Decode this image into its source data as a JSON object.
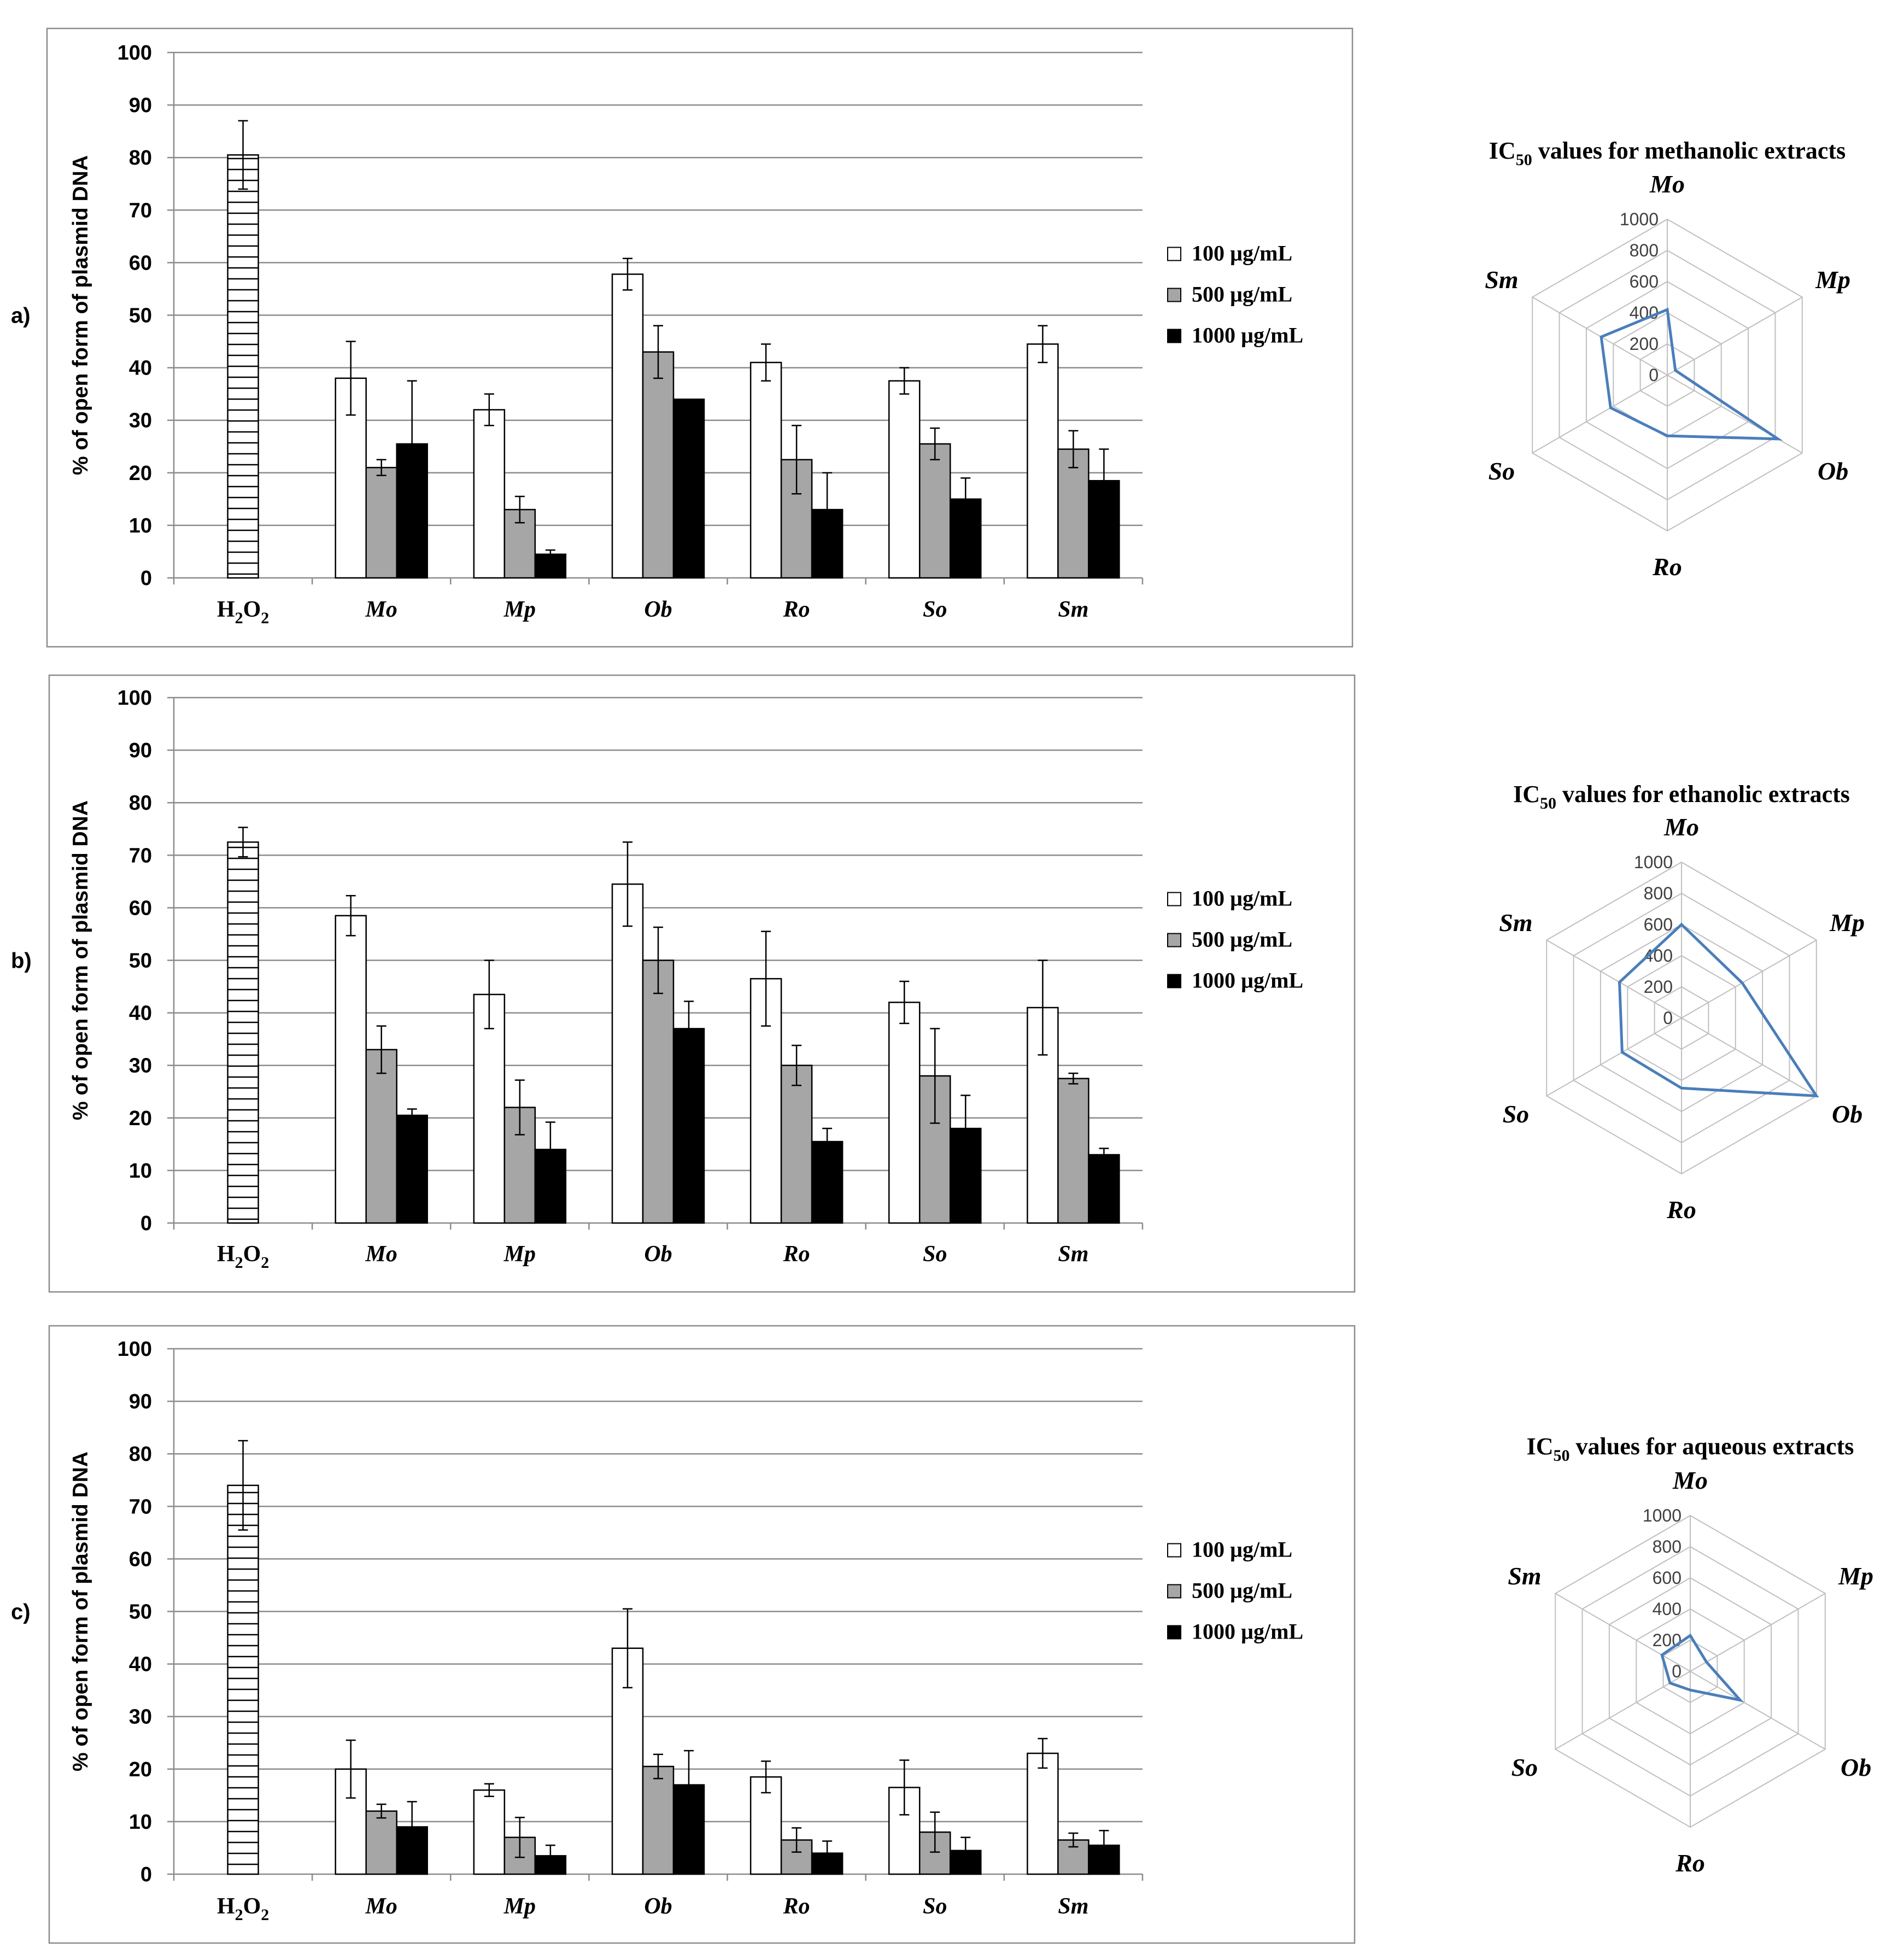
{
  "chart_data": [
    {
      "type": "bar",
      "panel_label": "a)",
      "ylabel": "% of open form of plasmid DNA",
      "ylim": [
        0,
        100
      ],
      "yticks": [
        "0",
        "10",
        "20",
        "30",
        "40",
        "50",
        "60",
        "70",
        "80",
        "90",
        "100"
      ],
      "grid": true,
      "categories": [
        "H2O2",
        "Mo",
        "Mp",
        "Ob",
        "Ro",
        "So",
        "Sm"
      ],
      "control": {
        "name": "H2O2",
        "value": 80.5,
        "error": 6.5
      },
      "series": [
        {
          "name": "100 µg/mL",
          "values": [
            null,
            38,
            32,
            57.8,
            41,
            37.5,
            44.5
          ],
          "errors": [
            null,
            7,
            3,
            3,
            3.5,
            2.5,
            3.5
          ]
        },
        {
          "name": "500 µg/mL",
          "values": [
            null,
            21,
            13,
            43,
            22.5,
            25.5,
            24.5
          ],
          "errors": [
            null,
            1.5,
            2.5,
            5,
            6.5,
            3,
            3.5
          ]
        },
        {
          "name": "1000 µg/mL",
          "values": [
            null,
            25.5,
            4.5,
            34,
            13,
            15,
            18.5
          ],
          "errors": [
            null,
            12,
            0.8,
            0,
            7,
            4,
            6
          ]
        }
      ],
      "legend": [
        "100 µg/mL",
        "500 µg/mL",
        "1000 µg/mL"
      ],
      "legend_position": "right"
    },
    {
      "type": "bar",
      "panel_label": "b)",
      "ylabel": "% of open form of plasmid DNA",
      "ylim": [
        0,
        100
      ],
      "yticks": [
        "0",
        "10",
        "20",
        "30",
        "40",
        "50",
        "60",
        "70",
        "80",
        "90",
        "100"
      ],
      "grid": true,
      "categories": [
        "H2O2",
        "Mo",
        "Mp",
        "Ob",
        "Ro",
        "So",
        "Sm"
      ],
      "control": {
        "name": "H2O2",
        "value": 72.5,
        "error": 2.8
      },
      "series": [
        {
          "name": "100 µg/mL",
          "values": [
            null,
            58.5,
            43.5,
            64.5,
            46.5,
            42,
            41
          ],
          "errors": [
            null,
            3.8,
            6.5,
            8,
            9,
            4,
            9
          ]
        },
        {
          "name": "500 µg/mL",
          "values": [
            null,
            33,
            22,
            50,
            30,
            28,
            27.5
          ],
          "errors": [
            null,
            4.5,
            5.2,
            6.3,
            3.8,
            9,
            1
          ]
        },
        {
          "name": "1000 µg/mL",
          "values": [
            null,
            20.5,
            14,
            37,
            15.5,
            18,
            13
          ],
          "errors": [
            null,
            1.2,
            5.2,
            5.2,
            2.5,
            6.3,
            1.2
          ]
        }
      ],
      "legend": [
        "100 µg/mL",
        "500 µg/mL",
        "1000 µg/mL"
      ],
      "legend_position": "right"
    },
    {
      "type": "bar",
      "panel_label": "c)",
      "ylabel": "% of open form of plasmid DNA",
      "ylim": [
        0,
        100
      ],
      "yticks": [
        "0",
        "10",
        "20",
        "30",
        "40",
        "50",
        "60",
        "70",
        "80",
        "90",
        "100"
      ],
      "grid": true,
      "categories": [
        "H2O2",
        "Mo",
        "Mp",
        "Ob",
        "Ro",
        "So",
        "Sm"
      ],
      "control": {
        "name": "H2O2",
        "value": 74,
        "error": 8.5
      },
      "series": [
        {
          "name": "100 µg/mL",
          "values": [
            null,
            20,
            16,
            43,
            18.5,
            16.5,
            23
          ],
          "errors": [
            null,
            5.5,
            1.2,
            7.5,
            3,
            5.2,
            2.8
          ]
        },
        {
          "name": "500 µg/mL",
          "values": [
            null,
            12,
            7,
            20.5,
            6.5,
            8,
            6.5
          ],
          "errors": [
            null,
            1.3,
            3.8,
            2.3,
            2.3,
            3.8,
            1.3
          ]
        },
        {
          "name": "1000 µg/mL",
          "values": [
            null,
            9,
            3.5,
            17,
            4,
            4.5,
            5.5
          ],
          "errors": [
            null,
            4.8,
            2,
            6.5,
            2.3,
            2.5,
            2.8
          ]
        }
      ],
      "legend": [
        "100 µg/mL",
        "500 µg/mL",
        "1000 µg/mL"
      ],
      "legend_position": "right"
    },
    {
      "type": "radar",
      "title": "IC50 values for methanolic extracts",
      "axes": [
        "Mo",
        "Mp",
        "Ob",
        "So",
        "Ro",
        "Sm"
      ],
      "axis_order_clockwise": [
        "Mo",
        "Mp",
        "Ob",
        "Ro",
        "So",
        "Sm"
      ],
      "rlim": [
        0,
        1000
      ],
      "rticks": [
        "0",
        "200",
        "400",
        "600",
        "800",
        "1000"
      ],
      "values": {
        "Mo": 420,
        "Mp": 60,
        "Ob": 820,
        "Ro": 390,
        "So": 420,
        "Sm": 490
      }
    },
    {
      "type": "radar",
      "title": "IC50 values for ethanolic extracts",
      "axes": [
        "Mo",
        "Mp",
        "Ob",
        "So",
        "Ro",
        "Sm"
      ],
      "axis_order_clockwise": [
        "Mo",
        "Mp",
        "Ob",
        "Ro",
        "So",
        "Sm"
      ],
      "rlim": [
        0,
        1000
      ],
      "rticks": [
        "0",
        "200",
        "400",
        "600",
        "800",
        "1000"
      ],
      "values": {
        "Mo": 600,
        "Mp": 450,
        "Ob": 1000,
        "Ro": 450,
        "So": 440,
        "Sm": 460
      }
    },
    {
      "type": "radar",
      "title": "IC50 values for aqueous extracts",
      "axes": [
        "Mo",
        "Mp",
        "Ob",
        "So",
        "Ro",
        "Sm"
      ],
      "axis_order_clockwise": [
        "Mo",
        "Mp",
        "Ob",
        "Ro",
        "So",
        "Sm"
      ],
      "rlim": [
        0,
        1000
      ],
      "rticks": [
        "0",
        "200",
        "400",
        "600",
        "800",
        "1000"
      ],
      "values": {
        "Mo": 230,
        "Mp": 120,
        "Ob": 370,
        "Ro": 120,
        "So": 150,
        "Sm": 210
      }
    }
  ]
}
